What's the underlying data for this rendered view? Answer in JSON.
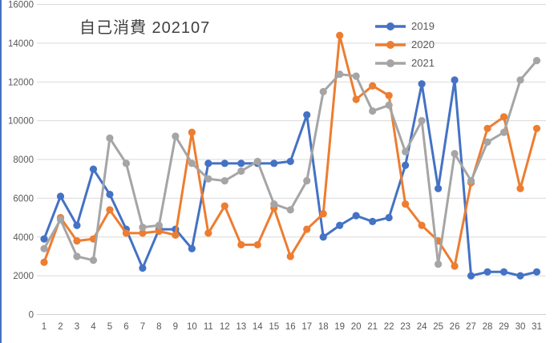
{
  "title": "自己消費 202107",
  "colors": {
    "accent_left_border": "#4472C4",
    "gridline": "#D9D9D9",
    "axis_line": "#D0D0D0",
    "tick_label": "#595959",
    "title_text": "#404040",
    "legend_text": "#595959"
  },
  "chart_data": {
    "type": "line",
    "title": "自己消費 202107",
    "xlabel": "",
    "ylabel": "",
    "x": [
      1,
      2,
      3,
      4,
      5,
      6,
      7,
      8,
      9,
      10,
      11,
      12,
      13,
      14,
      15,
      16,
      17,
      18,
      19,
      20,
      21,
      22,
      23,
      24,
      25,
      26,
      27,
      28,
      29,
      30,
      31
    ],
    "series": [
      {
        "name": "2019",
        "color": "#4472C4",
        "values": [
          3900,
          6100,
          4600,
          7500,
          6200,
          4400,
          2400,
          4400,
          4400,
          3400,
          7800,
          7800,
          7800,
          7800,
          7800,
          7900,
          10300,
          4000,
          4600,
          5100,
          4800,
          5000,
          7700,
          11900,
          6500,
          12100,
          2000,
          2200,
          2200,
          2000,
          2200
        ]
      },
      {
        "name": "2020",
        "color": "#ED7D31",
        "values": [
          2700,
          5000,
          3800,
          3900,
          5400,
          4200,
          4200,
          4300,
          4100,
          9400,
          4200,
          5600,
          3600,
          3600,
          5500,
          3000,
          4400,
          5200,
          14400,
          11100,
          11800,
          11300,
          5700,
          4600,
          3800,
          2500,
          6800,
          9600,
          10200,
          6500,
          9600
        ]
      },
      {
        "name": "2021",
        "color": "#A5A5A5",
        "values": [
          3400,
          4900,
          3000,
          2800,
          9100,
          7800,
          4500,
          4600,
          9200,
          7800,
          7000,
          6900,
          7400,
          7900,
          5700,
          5400,
          6900,
          11500,
          12400,
          12300,
          10500,
          10800,
          8400,
          10000,
          2600,
          8300,
          6900,
          8900,
          9400,
          12100,
          13100
        ]
      }
    ],
    "ylim": [
      0,
      16000
    ],
    "ytick_step": 2000,
    "grid": true,
    "legend_position": "top-right"
  }
}
